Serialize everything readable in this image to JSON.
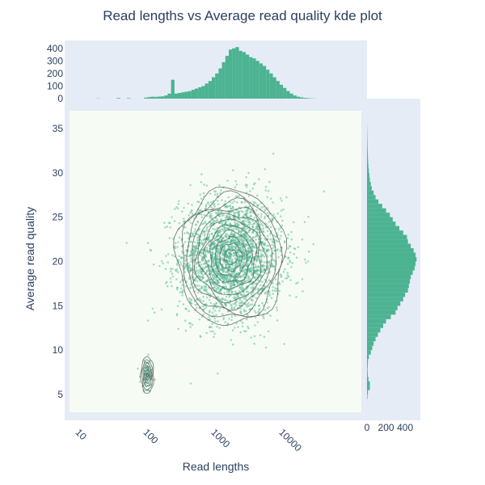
{
  "chart_data": {
    "type": "scatter",
    "title": "Read lengths vs Average read quality kde plot",
    "xlabel": "Read lengths",
    "ylabel": "Average read quality",
    "x_scale": "log",
    "xlim": [
      8,
      160000
    ],
    "ylim": [
      3,
      37
    ],
    "x_ticks": [
      10,
      100,
      1000,
      10000
    ],
    "x_tick_labels": [
      "10",
      "100",
      "1000",
      "10000"
    ],
    "y_ticks": [
      5,
      10,
      15,
      20,
      25,
      30,
      35
    ],
    "y_tick_labels": [
      "5",
      "10",
      "15",
      "20",
      "25",
      "30",
      "35"
    ],
    "top_hist": {
      "ylim": [
        0,
        450
      ],
      "ticks": [
        0,
        100,
        200,
        300,
        400
      ],
      "tick_labels": [
        "0",
        "100",
        "200",
        "300",
        "400"
      ],
      "bin_log_start": 1.0,
      "bin_log_width": 0.05,
      "counts": [
        0,
        0,
        0,
        0,
        0,
        0,
        2,
        0,
        0,
        0,
        0,
        0,
        5,
        0,
        0,
        4,
        0,
        0,
        0,
        0,
        8,
        12,
        15,
        14,
        16,
        18,
        25,
        40,
        150,
        40,
        45,
        50,
        55,
        60,
        70,
        80,
        90,
        100,
        120,
        140,
        170,
        200,
        240,
        290,
        340,
        390,
        400,
        410,
        380,
        370,
        350,
        330,
        320,
        300,
        280,
        260,
        230,
        200,
        170,
        140,
        110,
        85,
        60,
        40,
        25,
        15,
        10,
        6,
        4,
        2,
        1
      ],
      "color": "#4cb391"
    },
    "right_hist": {
      "xlim": [
        0,
        560
      ],
      "ticks": [
        0,
        200,
        400
      ],
      "tick_labels": [
        "0",
        "200",
        "400"
      ],
      "bin_start": 3,
      "bin_width": 0.5,
      "counts": [
        0,
        0,
        0,
        5,
        10,
        30,
        30,
        15,
        8,
        6,
        8,
        10,
        20,
        40,
        55,
        70,
        90,
        115,
        140,
        170,
        200,
        250,
        300,
        320,
        350,
        380,
        400,
        430,
        440,
        450,
        460,
        480,
        500,
        510,
        520,
        510,
        490,
        460,
        430,
        420,
        380,
        340,
        300,
        270,
        240,
        200,
        160,
        120,
        90,
        70,
        50,
        40,
        30,
        25,
        20,
        15,
        12,
        10,
        8,
        6,
        5,
        4,
        3,
        2,
        1
      ],
      "color": "#4cb391"
    },
    "main_cluster": {
      "center_x_log10": 3.28,
      "center_y": 20.5,
      "sd_x_log10": 0.38,
      "sd_y": 3.4,
      "n": 2600
    },
    "small_cluster": {
      "center_x_log10": 2.05,
      "center_y": 7.2,
      "sd_x_log10": 0.05,
      "sd_y": 0.9,
      "n": 90
    },
    "contour_levels": 11,
    "point_color": "#4cb391",
    "contour_color": "#555555",
    "plot_bg": "#f6fcf4",
    "margin_bg": "#e5ecf6"
  }
}
